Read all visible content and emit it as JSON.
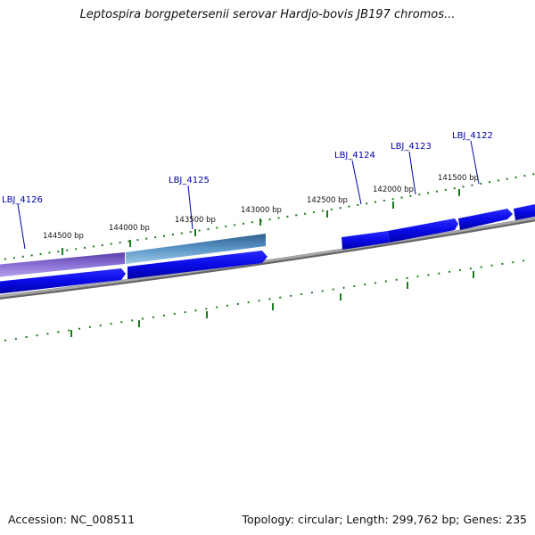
{
  "title": "Leptospira borgpetersenii serovar Hardjo-bovis JB197 chromos...",
  "footer": {
    "accession": "Accession: NC_008511",
    "stats": "Topology: circular; Length: 299,762 bp; Genes: 235"
  },
  "colors": {
    "forward_gene": "#0a0ae6",
    "highlight_purple": "#7a5fc8",
    "highlight_teal": "#4a86b6",
    "backbone": "#888888",
    "tick": "#1e7a1e",
    "label": "#0000aa"
  },
  "gene_labels": [
    {
      "id": "LBJ_4126",
      "text": "LBJ_4126"
    },
    {
      "id": "LBJ_4125",
      "text": "LBJ_4125"
    },
    {
      "id": "LBJ_4124",
      "text": "LBJ_4124"
    },
    {
      "id": "LBJ_4123",
      "text": "LBJ_4123"
    },
    {
      "id": "LBJ_4122",
      "text": "LBJ_4122"
    }
  ],
  "tick_labels": [
    {
      "text": "144500 bp"
    },
    {
      "text": "144000 bp"
    },
    {
      "text": "143500 bp"
    },
    {
      "text": "143000 bp"
    },
    {
      "text": "142500 bp"
    },
    {
      "text": "142000 bp"
    },
    {
      "text": "141500 bp"
    }
  ]
}
